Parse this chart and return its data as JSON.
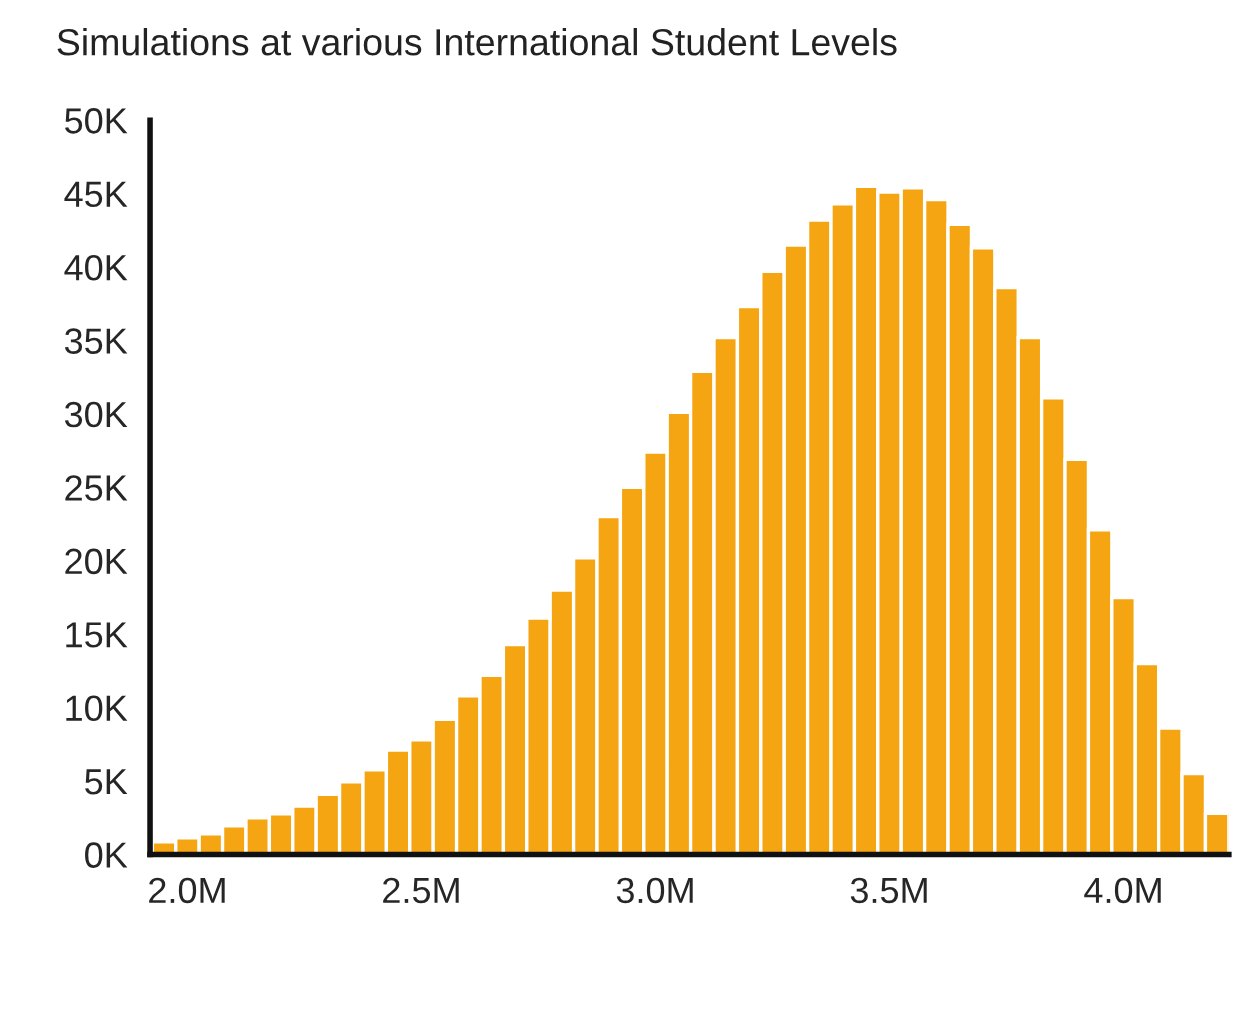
{
  "chart_data": {
    "type": "histogram",
    "title": "Simulations at various International Student Levels",
    "bins": [
      1925000,
      1975000,
      2025000,
      2075000,
      2125000,
      2175000,
      2225000,
      2275000,
      2325000,
      2375000,
      2425000,
      2475000,
      2525000,
      2575000,
      2625000,
      2675000,
      2725000,
      2775000,
      2825000,
      2875000,
      2925000,
      2975000,
      3025000,
      3075000,
      3125000,
      3175000,
      3225000,
      3275000,
      3325000,
      3375000,
      3425000,
      3475000,
      3525000,
      3575000,
      3625000,
      3675000,
      3725000,
      3775000,
      3825000,
      3875000,
      3925000,
      3975000,
      4025000,
      4075000,
      4125000,
      4175000,
      4225000
    ],
    "values": [
      860,
      1130,
      1400,
      1950,
      2500,
      2770,
      3300,
      4100,
      4950,
      5760,
      7100,
      7800,
      9200,
      10800,
      12200,
      14300,
      16100,
      18000,
      20200,
      23000,
      25000,
      27400,
      30100,
      32900,
      35200,
      37300,
      39700,
      41500,
      43200,
      44300,
      45500,
      45100,
      45400,
      44600,
      42900,
      41300,
      38600,
      35200,
      31100,
      26900,
      22100,
      17500,
      13000,
      8600,
      5500,
      2800
    ],
    "color": "#f5a511",
    "xlim": [
      1920000,
      4225000
    ],
    "xticks": [
      {
        "value": 2000000,
        "label": "2.0M"
      },
      {
        "value": 2500000,
        "label": "2.5M"
      },
      {
        "value": 3000000,
        "label": "3.0M"
      },
      {
        "value": 3500000,
        "label": "3.5M"
      },
      {
        "value": 4000000,
        "label": "4.0M"
      }
    ],
    "ylim": [
      0,
      50000
    ],
    "yticks": [
      {
        "value": 0,
        "label": "0K"
      },
      {
        "value": 5000,
        "label": "5K"
      },
      {
        "value": 10000,
        "label": "10K"
      },
      {
        "value": 15000,
        "label": "15K"
      },
      {
        "value": 20000,
        "label": "20K"
      },
      {
        "value": 25000,
        "label": "25K"
      },
      {
        "value": 30000,
        "label": "30K"
      },
      {
        "value": 35000,
        "label": "35K"
      },
      {
        "value": 40000,
        "label": "40K"
      },
      {
        "value": 45000,
        "label": "45K"
      },
      {
        "value": 50000,
        "label": "50K"
      }
    ],
    "grid": false,
    "legend": false
  }
}
